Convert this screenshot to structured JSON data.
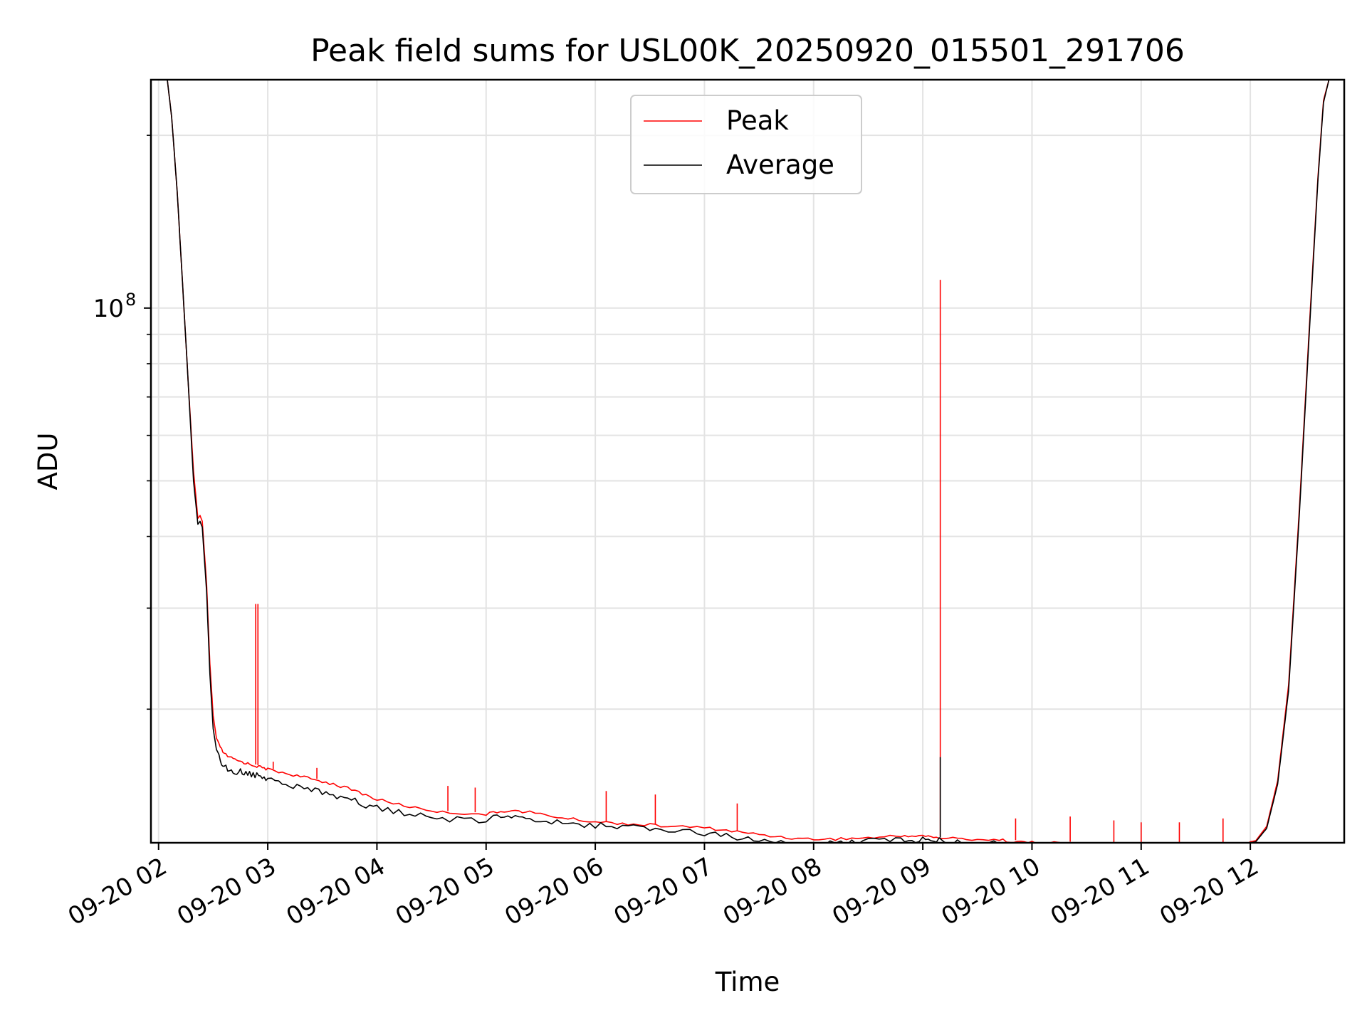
{
  "chart_data": {
    "type": "line",
    "title": "Peak field sums for USL00K_20250920_015501_291706",
    "xlabel": "Time",
    "ylabel": "ADU",
    "yscale": "log",
    "ylim": [
      11700000,
      250000000
    ],
    "xlim": [
      1.93,
      12.86
    ],
    "grid": true,
    "legend_position": "top-center",
    "x_unit": "hours since 09-20 00:00",
    "x_ticks": [
      {
        "value": 2,
        "label": "09-20 02"
      },
      {
        "value": 3,
        "label": "09-20 03"
      },
      {
        "value": 4,
        "label": "09-20 04"
      },
      {
        "value": 5,
        "label": "09-20 05"
      },
      {
        "value": 6,
        "label": "09-20 06"
      },
      {
        "value": 7,
        "label": "09-20 07"
      },
      {
        "value": 8,
        "label": "09-20 08"
      },
      {
        "value": 9,
        "label": "09-20 09"
      },
      {
        "value": 10,
        "label": "09-20 10"
      },
      {
        "value": 11,
        "label": "09-20 11"
      },
      {
        "value": 12,
        "label": "09-20 12"
      }
    ],
    "y_major_ticks": [
      {
        "value": 100000000,
        "base": "10",
        "exponent": "8"
      }
    ],
    "y_minor_ticks": [
      20000000,
      30000000,
      40000000,
      50000000,
      60000000,
      70000000,
      80000000,
      90000000,
      200000000
    ],
    "series": [
      {
        "name": "Peak",
        "color": "#ff0000",
        "x": [
          2.08,
          2.12,
          2.17,
          2.22,
          2.27,
          2.32,
          2.36,
          2.38,
          2.4,
          2.44,
          2.47,
          2.5,
          2.53,
          2.6,
          2.7,
          2.8,
          2.9,
          3.0,
          3.2,
          3.4,
          3.6,
          3.8,
          4.0,
          4.3,
          4.6,
          5.0,
          5.2,
          5.4,
          5.7,
          6.0,
          6.3,
          6.6,
          7.0,
          7.3,
          7.6,
          7.9,
          8.2,
          8.5,
          8.8,
          9.0,
          9.15,
          9.4,
          9.7,
          9.9,
          10.1,
          10.4,
          10.7,
          11.0,
          11.3,
          11.6,
          11.9,
          12.05,
          12.15,
          12.25,
          12.35,
          12.45,
          12.55,
          12.62,
          12.67,
          12.72
        ],
        "values": [
          250000000,
          215000000,
          160000000,
          110000000,
          75000000,
          52000000,
          43000000,
          43500000,
          42500000,
          33000000,
          24000000,
          19500000,
          17800000,
          16800000,
          16400000,
          16200000,
          16000000,
          15800000,
          15500000,
          15200000,
          14900000,
          14500000,
          14000000,
          13600000,
          13300000,
          13200000,
          13400000,
          13300000,
          13000000,
          12800000,
          12700000,
          12600000,
          12500000,
          12300000,
          12100000,
          11950000,
          11950000,
          12000000,
          12100000,
          12100000,
          12000000,
          11950000,
          11900000,
          11800000,
          11750000,
          11750000,
          11700000,
          11650000,
          11650000,
          11650000,
          11650000,
          11800000,
          12500000,
          15000000,
          22000000,
          45000000,
          100000000,
          170000000,
          230000000,
          250000000
        ],
        "spikes": [
          {
            "x": 2.89,
            "value": 30500000
          },
          {
            "x": 2.91,
            "value": 30500000
          },
          {
            "x": 9.16,
            "value": 112000000
          },
          {
            "x": 3.05,
            "value": 16200000
          },
          {
            "x": 3.45,
            "value": 15800000
          },
          {
            "x": 4.65,
            "value": 14700000
          },
          {
            "x": 4.9,
            "value": 14600000
          },
          {
            "x": 6.1,
            "value": 14400000
          },
          {
            "x": 6.55,
            "value": 14200000
          },
          {
            "x": 7.3,
            "value": 13700000
          },
          {
            "x": 9.85,
            "value": 12900000
          },
          {
            "x": 10.35,
            "value": 13000000
          },
          {
            "x": 10.75,
            "value": 12800000
          },
          {
            "x": 11.0,
            "value": 12700000
          },
          {
            "x": 11.35,
            "value": 12700000
          },
          {
            "x": 11.75,
            "value": 12900000
          }
        ]
      },
      {
        "name": "Average",
        "color": "#000000",
        "x": [
          2.08,
          2.12,
          2.17,
          2.22,
          2.27,
          2.32,
          2.36,
          2.38,
          2.4,
          2.44,
          2.47,
          2.5,
          2.53,
          2.6,
          2.7,
          2.8,
          2.9,
          3.0,
          3.2,
          3.4,
          3.6,
          3.8,
          4.0,
          4.3,
          4.6,
          5.0,
          5.2,
          5.4,
          5.7,
          6.0,
          6.3,
          6.6,
          7.0,
          7.3,
          7.6,
          7.9,
          8.2,
          8.5,
          8.8,
          9.0,
          9.15,
          9.4,
          9.7,
          9.9,
          10.1,
          10.4,
          10.7,
          11.0,
          11.3,
          11.6,
          11.9,
          12.05,
          12.15,
          12.25,
          12.35,
          12.45,
          12.55,
          12.62,
          12.67,
          12.72
        ],
        "values": [
          250000000,
          215000000,
          160000000,
          110000000,
          75000000,
          50000000,
          42000000,
          42500000,
          41500000,
          32000000,
          23000000,
          18500000,
          17000000,
          16100000,
          15800000,
          15700000,
          15500000,
          15300000,
          14900000,
          14700000,
          14300000,
          14000000,
          13600000,
          13300000,
          13000000,
          13000000,
          13200000,
          13100000,
          12850000,
          12700000,
          12600000,
          12500000,
          12350000,
          12100000,
          11900000,
          11800000,
          11850000,
          11900000,
          12000000,
          12000000,
          11950000,
          11900000,
          11850000,
          11750000,
          11700000,
          11700000,
          11650000,
          11600000,
          11600000,
          11600000,
          11600000,
          11750000,
          12400000,
          14800000,
          21500000,
          44000000,
          98000000,
          168000000,
          228000000,
          250000000
        ],
        "spikes": [
          {
            "x": 9.16,
            "value": 16500000
          }
        ]
      }
    ]
  }
}
